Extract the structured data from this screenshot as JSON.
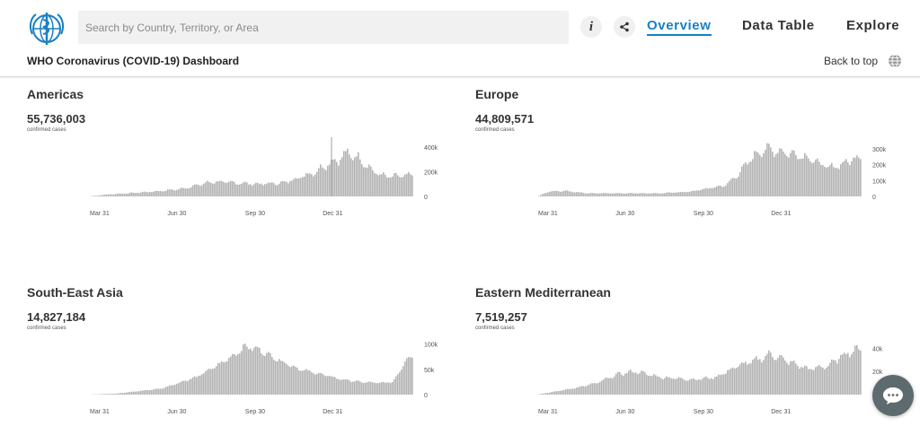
{
  "header": {
    "search_placeholder": "Search by Country, Territory, or Area",
    "nav": {
      "overview": "Overview",
      "data_table": "Data Table",
      "explore": "Explore"
    },
    "dashboard_title": "WHO Coronavirus (COVID-19) Dashboard",
    "back_to_top": "Back to top",
    "icons": {
      "logo": "who-logo-icon",
      "info": "info-icon",
      "share": "share-icon",
      "globe": "globe-icon",
      "chat": "chat-icon"
    },
    "colors": {
      "active_nav": "#1a80c2",
      "bar": "#b3b3b3"
    }
  },
  "panels": [
    {
      "region": "Americas",
      "cases": "55,736,003",
      "caption": "confirmed cases"
    },
    {
      "region": "Europe",
      "cases": "44,809,571",
      "caption": "confirmed cases"
    },
    {
      "region": "South-East Asia",
      "cases": "14,827,184",
      "caption": "confirmed cases"
    },
    {
      "region": "Eastern Mediterranean",
      "cases": "7,519,257",
      "caption": "confirmed cases"
    }
  ],
  "chart_data": [
    {
      "type": "bar",
      "title": "Americas",
      "x_tick_labels": [
        "Mar 31",
        "Jun 30",
        "Sep 30",
        "Dec 31"
      ],
      "y_tick_labels": [
        "400k",
        "200k",
        "0"
      ],
      "y_ticks": [
        400000,
        200000,
        0
      ],
      "ylim": [
        0,
        450000
      ],
      "peak_annotation": 480000,
      "profile": [
        [
          0,
          1000
        ],
        [
          0.05,
          15000
        ],
        [
          0.2,
          40000
        ],
        [
          0.28,
          60000
        ],
        [
          0.38,
          120000
        ],
        [
          0.52,
          100000
        ],
        [
          0.6,
          110000
        ],
        [
          0.7,
          200000
        ],
        [
          0.74,
          270000
        ],
        [
          0.77,
          300000
        ],
        [
          0.8,
          350000
        ],
        [
          0.84,
          300000
        ],
        [
          0.88,
          200000
        ],
        [
          0.92,
          160000
        ],
        [
          1.0,
          170000
        ]
      ],
      "noise": 0.35
    },
    {
      "type": "bar",
      "title": "Europe",
      "x_tick_labels": [
        "Mar 31",
        "Jun 30",
        "Sep 30",
        "Dec 31"
      ],
      "y_tick_labels": [
        "300k",
        "200k",
        "100k",
        "0"
      ],
      "y_ticks": [
        300000,
        200000,
        100000,
        0
      ],
      "ylim": [
        0,
        350000
      ],
      "profile": [
        [
          0,
          3000
        ],
        [
          0.03,
          30000
        ],
        [
          0.08,
          35000
        ],
        [
          0.15,
          20000
        ],
        [
          0.38,
          20000
        ],
        [
          0.47,
          30000
        ],
        [
          0.58,
          70000
        ],
        [
          0.62,
          140000
        ],
        [
          0.66,
          240000
        ],
        [
          0.7,
          300000
        ],
        [
          0.76,
          280000
        ],
        [
          0.83,
          250000
        ],
        [
          0.9,
          180000
        ],
        [
          0.94,
          200000
        ],
        [
          0.98,
          240000
        ],
        [
          1.0,
          250000
        ]
      ],
      "noise": 0.3
    },
    {
      "type": "bar",
      "title": "South-East Asia",
      "x_tick_labels": [
        "Mar 31",
        "Jun 30",
        "Sep 30",
        "Dec 31"
      ],
      "y_tick_labels": [
        "100k",
        "50k",
        "0"
      ],
      "y_ticks": [
        100000,
        50000,
        0
      ],
      "ylim": [
        0,
        110000
      ],
      "profile": [
        [
          0,
          200
        ],
        [
          0.08,
          2000
        ],
        [
          0.22,
          12000
        ],
        [
          0.33,
          35000
        ],
        [
          0.4,
          60000
        ],
        [
          0.45,
          80000
        ],
        [
          0.48,
          95000
        ],
        [
          0.52,
          90000
        ],
        [
          0.58,
          70000
        ],
        [
          0.65,
          50000
        ],
        [
          0.72,
          40000
        ],
        [
          0.78,
          30000
        ],
        [
          0.84,
          25000
        ],
        [
          0.9,
          23000
        ],
        [
          0.94,
          25000
        ],
        [
          0.96,
          45000
        ],
        [
          0.98,
          70000
        ],
        [
          1.0,
          75000
        ]
      ],
      "noise": 0.18
    },
    {
      "type": "bar",
      "title": "Eastern Mediterranean",
      "x_tick_labels": [
        "Mar 31",
        "Jun 30",
        "Sep 30",
        "Dec 31"
      ],
      "y_tick_labels": [
        "40k",
        "20k"
      ],
      "y_ticks": [
        40000,
        20000
      ],
      "ylim": [
        0,
        48000
      ],
      "profile": [
        [
          0,
          300
        ],
        [
          0.1,
          5000
        ],
        [
          0.18,
          10000
        ],
        [
          0.25,
          18000
        ],
        [
          0.3,
          20000
        ],
        [
          0.38,
          15000
        ],
        [
          0.48,
          13000
        ],
        [
          0.55,
          15000
        ],
        [
          0.62,
          25000
        ],
        [
          0.68,
          30000
        ],
        [
          0.72,
          35000
        ],
        [
          0.78,
          28000
        ],
        [
          0.84,
          22000
        ],
        [
          0.9,
          25000
        ],
        [
          0.95,
          35000
        ],
        [
          1.0,
          40000
        ]
      ],
      "noise": 0.25
    }
  ]
}
